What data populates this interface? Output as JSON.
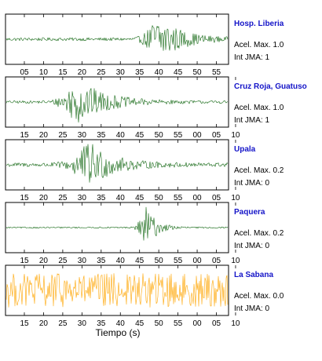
{
  "colors": {
    "station_name": "#1414c8",
    "trace_active": "#116611",
    "trace_low": "#ffa500",
    "frame": "#000000",
    "background": "#ffffff"
  },
  "chart_data": [
    {
      "type": "line",
      "station": "Hosp. Liberia",
      "accel_text": "Acel. Max. 1.0",
      "jma_text": "Int JMA: 1",
      "accel_max": 1.0,
      "int_jma": 1,
      "trace_color": "#116611",
      "tick_labels": [
        "05",
        "10",
        "15",
        "20",
        "25",
        "30",
        "35",
        "40",
        "45",
        "50",
        "55"
      ],
      "noise_level": 0.07,
      "bursts": [
        {
          "center": 45.5,
          "width": 2.5,
          "amp": 0.95,
          "decay": 5.5
        }
      ]
    },
    {
      "type": "line",
      "station": "Cruz Roja, Guatuso",
      "accel_text": "Acel. Max. 1.0",
      "jma_text": "Int JMA: 1",
      "accel_max": 1.0,
      "int_jma": 1,
      "trace_color": "#116611",
      "tick_labels": [
        "15",
        "20",
        "25",
        "30",
        "35",
        "40",
        "45",
        "50",
        "55",
        "00",
        "05",
        "10"
      ],
      "noise_level": 0.06,
      "bursts": [
        {
          "center": 24.5,
          "width": 3.0,
          "amp": 0.92,
          "decay": 7
        }
      ]
    },
    {
      "type": "line",
      "station": "Upala",
      "accel_text": "Acel. Max. 0.2",
      "jma_text": "Int JMA: 0",
      "accel_max": 0.2,
      "int_jma": 0,
      "trace_color": "#116611",
      "tick_labels": [
        "15",
        "20",
        "25",
        "30",
        "35",
        "40",
        "45",
        "50",
        "55",
        "00",
        "05",
        "10"
      ],
      "noise_level": 0.09,
      "bursts": [
        {
          "center": 27.5,
          "width": 3.5,
          "amp": 0.88,
          "decay": 6
        }
      ]
    },
    {
      "type": "line",
      "station": "Paquera",
      "accel_text": "Acel. Max. 0.2",
      "jma_text": "Int JMA: 0",
      "accel_max": 0.2,
      "int_jma": 0,
      "trace_color": "#116611",
      "tick_labels": [
        "15",
        "20",
        "25",
        "30",
        "35",
        "40",
        "45",
        "50",
        "55",
        "00",
        "05",
        "10"
      ],
      "noise_level": 0.03,
      "bursts": [
        {
          "center": 42.0,
          "width": 1.4,
          "amp": 0.9,
          "decay": 2.5
        }
      ]
    },
    {
      "type": "line",
      "station": "La Sabana",
      "accel_text": "Acel. Max. 0.0",
      "jma_text": "Int JMA: 0",
      "accel_max": 0.0,
      "int_jma": 0,
      "trace_color": "#ffa500",
      "tick_labels": [
        "15",
        "20",
        "25",
        "30",
        "35",
        "40",
        "45",
        "50",
        "55",
        "00",
        "05",
        "10"
      ],
      "noise_level": 0.75,
      "bursts": []
    }
  ],
  "xlabel": "Tiempo (s)"
}
